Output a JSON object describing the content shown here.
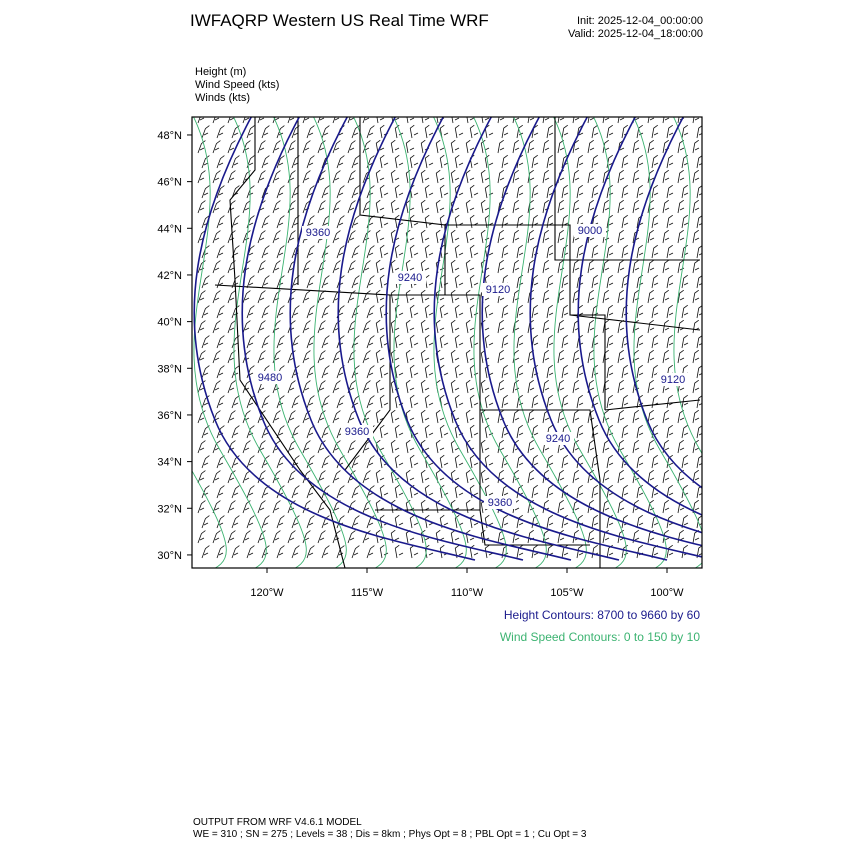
{
  "header": {
    "title": "IWFAQRP Western US Real Time WRF",
    "init": "Init: 2025-12-04_00:00:00",
    "valid": "Valid: 2025-12-04_18:00:00"
  },
  "fields": [
    "Height   (m)",
    "Wind Speed   (kts)",
    "Winds   (kts)"
  ],
  "map": {
    "xlim": [
      -123.75,
      -98.25
    ],
    "ylim": [
      29.44,
      48.77
    ],
    "lat_ticks": [
      {
        "value": 30,
        "label": "30°N"
      },
      {
        "value": 32,
        "label": "32°N"
      },
      {
        "value": 34,
        "label": "34°N"
      },
      {
        "value": 36,
        "label": "36°N"
      },
      {
        "value": 38,
        "label": "38°N"
      },
      {
        "value": 40,
        "label": "40°N"
      },
      {
        "value": 42,
        "label": "42°N"
      },
      {
        "value": 44,
        "label": "44°N"
      },
      {
        "value": 46,
        "label": "46°N"
      },
      {
        "value": 48,
        "label": "48°N"
      }
    ],
    "lon_ticks": [
      {
        "value": -120,
        "label": "120°W"
      },
      {
        "value": -115,
        "label": "115°W"
      },
      {
        "value": -110,
        "label": "110°W"
      },
      {
        "value": -105,
        "label": "105°W"
      },
      {
        "value": -100,
        "label": "100°W"
      }
    ],
    "contour_labels": [
      "9360",
      "9240",
      "9120",
      "9480",
      "9000",
      "9360",
      "9240",
      "9360",
      "9120"
    ],
    "height_contours": "Height Contours: 8700 to 9660 by 60",
    "wind_contours": "Wind Speed Contours: 0 to 150 by 10"
  },
  "footer": [
    "OUTPUT FROM WRF V4.6.1 MODEL",
    "WE = 310 ; SN = 275 ; Levels = 38 ; Dis = 8km ; Phys Opt = 8 ; PBL Opt = 1 ; Cu Opt = 3"
  ]
}
